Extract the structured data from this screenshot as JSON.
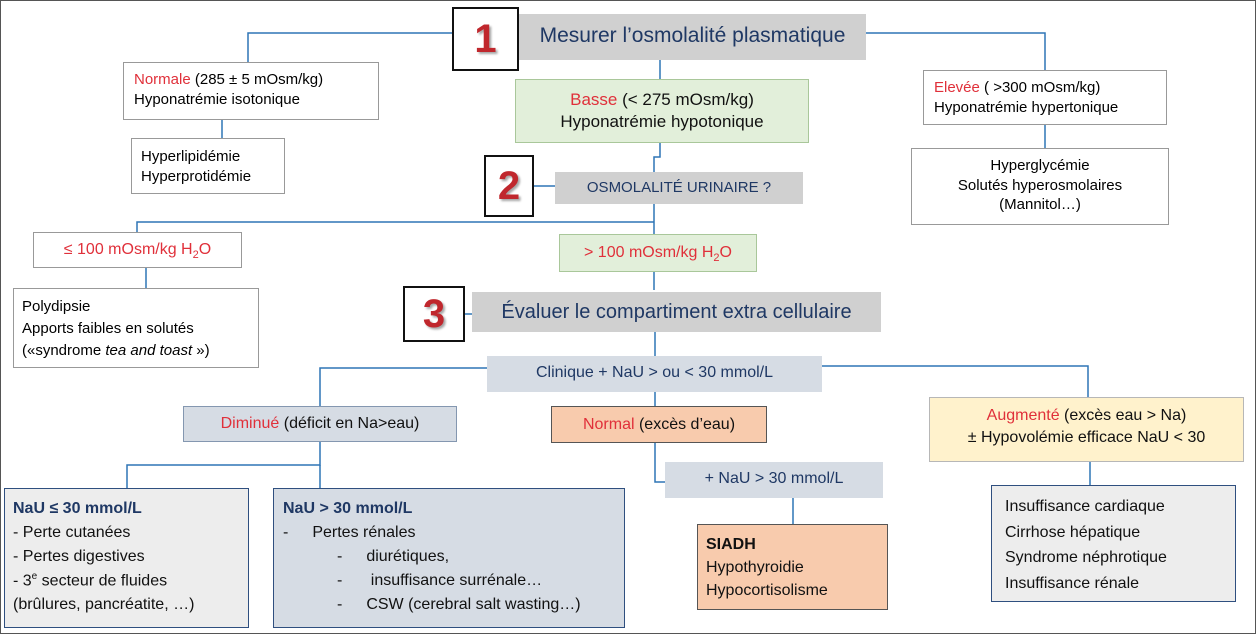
{
  "step1": {
    "number": "1",
    "title": "Mesurer l’osmolalité plasmatique",
    "normale": {
      "label": "Normale",
      "range": " (285 ± 5 mOsm/kg)",
      "subtitle": "Hyponatrémie isotonique"
    },
    "normale_causes": [
      "Hyperlipidémie",
      "Hyperprotidémie"
    ],
    "basse": {
      "label": "Basse",
      "range": " (< 275 mOsm/kg)",
      "subtitle": "Hyponatrémie hypotonique"
    },
    "elevee": {
      "label": "Elevée",
      "range": " ( >300 mOsm/kg)",
      "subtitle": "Hyponatrémie hypertonique"
    },
    "elevee_causes": [
      "Hyperglycémie",
      "Solutés hyperosmolaires",
      "(Mannitol…)"
    ]
  },
  "step2": {
    "number": "2",
    "title": "OSMOLALITÉ URINAIRE ?",
    "low": {
      "text": "≤ 100 mOsm/kg H",
      "sub": "2",
      "tail": "O"
    },
    "low_causes": {
      "line1": "Polydipsie",
      "line2": "Apports faibles en solutés",
      "line3_pre": "(«syndrome ",
      "line3_em": "tea and toast",
      "line3_post": " »)"
    },
    "high": {
      "text": "> 100 mOsm/kg H",
      "sub": "2",
      "tail": "O"
    }
  },
  "step3": {
    "number": "3",
    "title": "Évaluer le compartiment extra cellulaire",
    "clinique": "Clinique + NaU > ou < 30 mmol/L",
    "diminue": {
      "label": "Diminué",
      "detail": " (déficit en Na>eau)"
    },
    "normal": {
      "label": "Normal",
      "detail": "  (excès d’eau)"
    },
    "augmente": {
      "label": "Augmenté",
      "detail": " (excès eau > Na)",
      "line2": "± Hypovolémie efficace NaU < 30"
    },
    "nau_low": {
      "title": "NaU ≤ 30 mmol/L",
      "item1": " - Perte cutanées",
      "item2": " - Pertes digestives",
      "item3_pre": " - 3",
      "item3_sup": "e",
      "item3_post": " secteur de fluides",
      "item4": "(brûlures, pancréatite, …)"
    },
    "nau_high": {
      "title": "NaU > 30 mmol/L",
      "dash1": "-",
      "item1": "Pertes rénales",
      "dash2": "-",
      "item2": "diurétiques,",
      "dash3": "-",
      "item3": " insuffisance surrénale…",
      "dash4": "-",
      "item4": "CSW (cerebral salt wasting…)"
    },
    "nau_30": "+ NaU > 30 mmol/L",
    "siadh": {
      "title": "SIADH",
      "item1": "Hypothyroidie",
      "item2": "Hypocortisolisme"
    },
    "augmente_causes": [
      "Insuffisance cardiaque",
      "Cirrhose hépatique",
      "Syndrome néphrotique",
      "Insuffisance rénale"
    ]
  },
  "colors": {
    "red_label": "#e0303a",
    "navy_text": "#1f3864",
    "connector": "#2e75b6"
  }
}
